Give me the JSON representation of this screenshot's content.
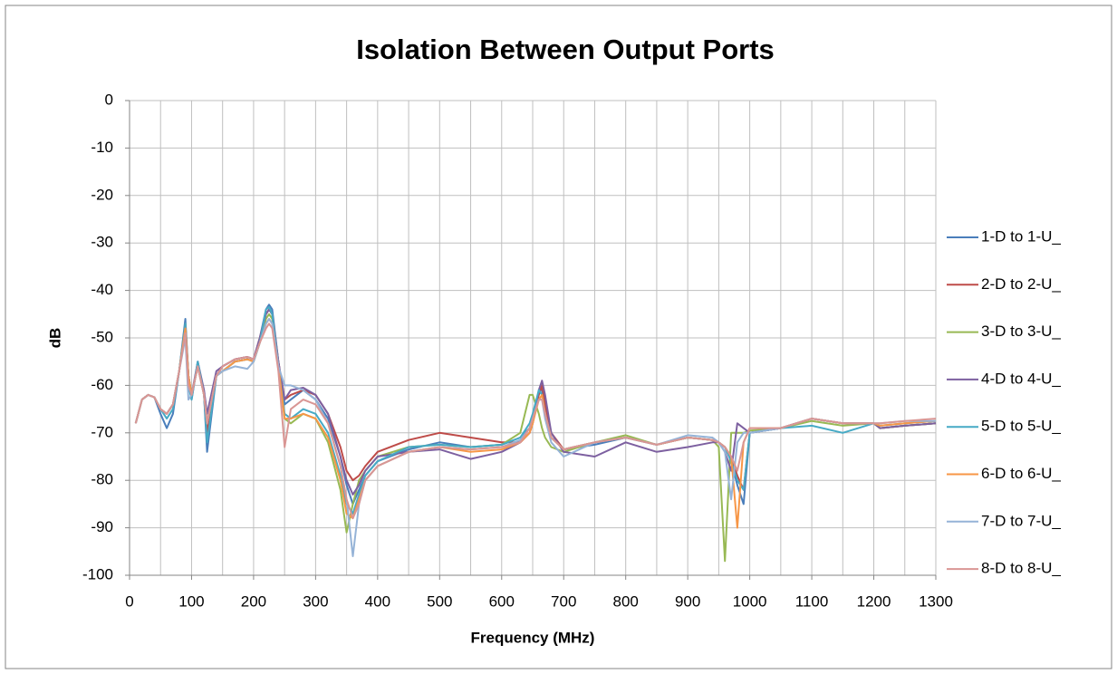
{
  "chart_data": {
    "type": "line",
    "title": "Isolation Between Output Ports",
    "x_label": "Frequency (MHz)",
    "y_label": "dB",
    "xlim": [
      0,
      1300
    ],
    "ylim": [
      -100,
      0
    ],
    "xticks": [
      0,
      100,
      200,
      300,
      400,
      500,
      600,
      700,
      800,
      900,
      1000,
      1100,
      1200,
      1300
    ],
    "xminorticks": [
      50,
      150,
      250,
      350,
      450,
      550,
      650,
      750,
      850,
      950,
      1050,
      1150,
      1250
    ],
    "yticks": [
      0,
      -10,
      -20,
      -30,
      -40,
      -50,
      -60,
      -70,
      -80,
      -90,
      -100
    ],
    "grid": true,
    "legend": "right",
    "x": [
      10,
      20,
      30,
      40,
      50,
      60,
      70,
      80,
      90,
      95,
      100,
      110,
      120,
      125,
      140,
      150,
      170,
      190,
      200,
      210,
      220,
      225,
      230,
      240,
      250,
      260,
      280,
      300,
      320,
      340,
      350,
      360,
      370,
      380,
      400,
      450,
      500,
      550,
      600,
      630,
      645,
      650,
      660,
      665,
      670,
      680,
      700,
      750,
      800,
      850,
      900,
      940,
      950,
      960,
      970,
      980,
      990,
      1000,
      1050,
      1100,
      1150,
      1200,
      1210,
      1250,
      1300
    ],
    "series": [
      {
        "name": "1-D to 1-U_",
        "color": "#4a7ebb",
        "values": [
          -68,
          -63,
          -62,
          -62.5,
          -66,
          -69,
          -66,
          -57,
          -46,
          -58,
          -63,
          -55,
          -62,
          -74,
          -58,
          -56,
          -54.5,
          -54,
          -54.5,
          -50,
          -44,
          -43,
          -44,
          -55,
          -64,
          -63,
          -61,
          -63,
          -67,
          -75,
          -81,
          -85,
          -82,
          -79,
          -76,
          -73.5,
          -72,
          -73,
          -72.5,
          -71,
          -69,
          -67,
          -61,
          -61,
          -66,
          -71,
          -73.5,
          -72.5,
          -71,
          -72.5,
          -71,
          -71.5,
          -72,
          -73,
          -76,
          -81,
          -85,
          -70,
          -69,
          -67,
          -68,
          -68,
          -69,
          -68.5,
          -68
        ]
      },
      {
        "name": "2-D to 2-U_",
        "color": "#be4b48",
        "values": [
          -68,
          -63,
          -62,
          -62.5,
          -65,
          -66,
          -64,
          -57,
          -48,
          -58,
          -62,
          -56,
          -62,
          -70,
          -58,
          -56,
          -54.5,
          -54,
          -54.5,
          -50,
          -45,
          -44,
          -45,
          -55,
          -63,
          -62,
          -61,
          -62,
          -66,
          -73,
          -78,
          -80,
          -79,
          -77,
          -74,
          -71.5,
          -70,
          -71,
          -72,
          -72,
          -70,
          -68,
          -62,
          -60,
          -64,
          -70,
          -73.5,
          -72,
          -71,
          -72.5,
          -71,
          -71.5,
          -72,
          -73,
          -75,
          -79,
          -82,
          -70,
          -69,
          -67,
          -68,
          -68,
          -69,
          -68.5,
          -68
        ]
      },
      {
        "name": "3-D to 3-U_",
        "color": "#98b954",
        "values": [
          -68,
          -63,
          -62,
          -62.5,
          -65,
          -66,
          -64,
          -57,
          -47,
          -58,
          -62,
          -56,
          -62,
          -68,
          -58,
          -57,
          -55,
          -54.5,
          -55,
          -51,
          -46,
          -45,
          -46,
          -56,
          -67,
          -68,
          -66,
          -67,
          -72,
          -82,
          -91,
          -85,
          -80,
          -78,
          -75,
          -73,
          -72.5,
          -73,
          -72.5,
          -70,
          -62,
          -62,
          -66,
          -69,
          -71,
          -73,
          -74,
          -72,
          -70.5,
          -72.5,
          -71,
          -71.5,
          -73,
          -97,
          -70,
          -70,
          -70,
          -69.5,
          -69,
          -67.5,
          -68.5,
          -68,
          -69,
          -68.5,
          -68
        ]
      },
      {
        "name": "4-D to 4-U_",
        "color": "#7d60a0",
        "values": [
          -68,
          -63,
          -62,
          -62.5,
          -65,
          -66,
          -64,
          -57,
          -47,
          -58,
          -62,
          -55,
          -61,
          -66,
          -57,
          -56,
          -54.5,
          -54,
          -54.5,
          -50,
          -45,
          -44,
          -45,
          -55,
          -63,
          -61,
          -60.5,
          -62,
          -66,
          -75,
          -80,
          -83,
          -81,
          -78,
          -75,
          -74,
          -73.5,
          -75.5,
          -74,
          -72,
          -70,
          -68,
          -61,
          -59,
          -62,
          -70,
          -74,
          -75,
          -72,
          -74,
          -73,
          -72,
          -72,
          -74,
          -78,
          -68,
          -69,
          -70,
          -69,
          -67,
          -68,
          -68,
          -69,
          -68.5,
          -68
        ]
      },
      {
        "name": "5-D to 5-U_",
        "color": "#46aac5",
        "values": [
          -68,
          -63,
          -62,
          -62.5,
          -65,
          -67,
          -65,
          -57,
          -47,
          -60,
          -63,
          -55,
          -62,
          -72,
          -58,
          -57,
          -55,
          -54.5,
          -55,
          -51,
          -44,
          -43.5,
          -45,
          -56,
          -66,
          -67,
          -65,
          -66,
          -70,
          -79,
          -85,
          -87,
          -83,
          -79,
          -76,
          -73,
          -72.5,
          -73,
          -72.5,
          -71,
          -68,
          -66,
          -61,
          -62,
          -66,
          -71,
          -73.5,
          -72,
          -71,
          -72.5,
          -71,
          -71.5,
          -72,
          -73,
          -76,
          -80,
          -82,
          -70,
          -69,
          -68.5,
          -70,
          -68,
          -68.5,
          -68,
          -67.5
        ]
      },
      {
        "name": "6-D to 6-U_",
        "color": "#f79646",
        "values": [
          -68,
          -63,
          -62,
          -62.5,
          -65,
          -66,
          -64,
          -57,
          -48,
          -58,
          -62,
          -56,
          -62,
          -68,
          -58,
          -57,
          -55,
          -54.5,
          -55,
          -51,
          -47,
          -46,
          -47,
          -56,
          -67,
          -67,
          -66,
          -67,
          -71,
          -80,
          -87,
          -88,
          -84,
          -80,
          -77,
          -74,
          -73,
          -74,
          -73.5,
          -72,
          -70,
          -68,
          -63,
          -62,
          -66,
          -71,
          -73.5,
          -72,
          -71,
          -72.5,
          -71,
          -71.5,
          -72,
          -73,
          -75,
          -90,
          -72,
          -69,
          -69,
          -67,
          -68,
          -68,
          -68.5,
          -68,
          -67.5
        ]
      },
      {
        "name": "7-D to 7-U_",
        "color": "#95b3d7",
        "values": [
          -68,
          -63,
          -62,
          -62.5,
          -65,
          -66,
          -64,
          -57,
          -50,
          -63,
          -62,
          -56,
          -62,
          -68,
          -58,
          -57,
          -56,
          -56.5,
          -55,
          -51,
          -47,
          -46,
          -47,
          -56,
          -60,
          -60,
          -61,
          -63,
          -68,
          -77,
          -84,
          -96,
          -85,
          -80,
          -77,
          -74,
          -73,
          -73.5,
          -73,
          -71.5,
          -69,
          -67,
          -63,
          -63,
          -67,
          -72,
          -75,
          -72,
          -71,
          -72.5,
          -70.5,
          -71,
          -72,
          -74,
          -84,
          -72,
          -70,
          -70,
          -69,
          -67,
          -68,
          -68,
          -68,
          -67.5,
          -67.5
        ]
      },
      {
        "name": "8-D to 8-U_",
        "color": "#d99694",
        "values": [
          -68,
          -63,
          -62,
          -62.5,
          -65,
          -66,
          -64,
          -57,
          -49,
          -60,
          -62,
          -56,
          -62,
          -68,
          -58,
          -56,
          -54.5,
          -54,
          -54.5,
          -51,
          -48,
          -47,
          -48,
          -57,
          -73,
          -65,
          -63,
          -64,
          -68,
          -77,
          -84,
          -88,
          -85,
          -80,
          -77,
          -74,
          -73,
          -73.5,
          -73,
          -72,
          -69,
          -67,
          -63,
          -63,
          -66,
          -71,
          -73.5,
          -72,
          -71,
          -72.5,
          -71,
          -71.5,
          -72,
          -73,
          -75,
          -78,
          -72,
          -69,
          -69,
          -67,
          -68,
          -68,
          -68,
          -67.5,
          -67
        ]
      }
    ]
  }
}
